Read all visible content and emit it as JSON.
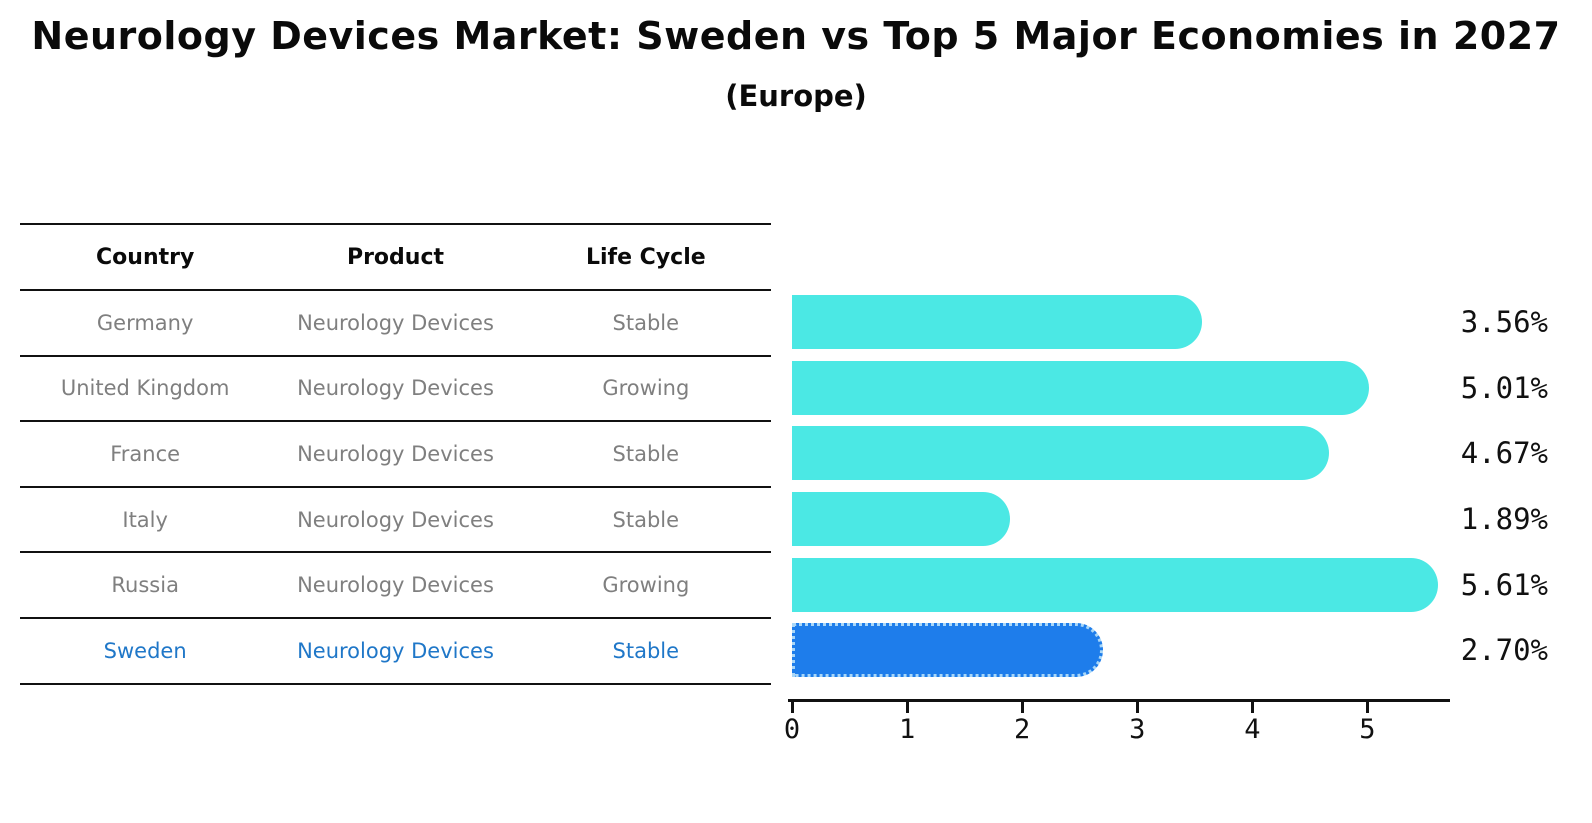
{
  "title": "Neurology Devices Market: Sweden vs Top 5 Major Economies in 2027",
  "subtitle": "(Europe)",
  "table": {
    "headers": [
      "Country",
      "Product",
      "Life Cycle"
    ],
    "rows": [
      {
        "country": "Germany",
        "product": "Neurology Devices",
        "life_cycle": "Stable",
        "highlight": false
      },
      {
        "country": "United Kingdom",
        "product": "Neurology Devices",
        "life_cycle": "Growing",
        "highlight": false
      },
      {
        "country": "France",
        "product": "Neurology Devices",
        "life_cycle": "Stable",
        "highlight": false
      },
      {
        "country": "Italy",
        "product": "Neurology Devices",
        "life_cycle": "Stable",
        "highlight": false
      },
      {
        "country": "Russia",
        "product": "Neurology Devices",
        "life_cycle": "Growing",
        "highlight": false
      },
      {
        "country": "Sweden",
        "product": "Neurology Devices",
        "life_cycle": "Stable",
        "highlight": true
      }
    ]
  },
  "chart_data": {
    "type": "bar",
    "orientation": "horizontal",
    "title": "Neurology Devices Market: Sweden vs Top 5 Major Economies in 2027",
    "subtitle": "(Europe)",
    "categories": [
      "Germany",
      "United Kingdom",
      "France",
      "Italy",
      "Russia",
      "Sweden"
    ],
    "values": [
      3.56,
      5.01,
      4.67,
      1.89,
      5.61,
      2.7
    ],
    "value_labels": [
      "3.56%",
      "5.01%",
      "4.67%",
      "1.89%",
      "5.61%",
      "2.70%"
    ],
    "xlabel": "",
    "ylabel": "",
    "xlim": [
      0,
      5.7
    ],
    "x_ticks": [
      0,
      1,
      2,
      3,
      4,
      5
    ],
    "grid": false,
    "legend": "none",
    "highlight_index": 5,
    "bar_color": "#4be8e4",
    "highlight_bar_color": "#1e7deb",
    "highlight_text_color": "#1f77c8"
  }
}
